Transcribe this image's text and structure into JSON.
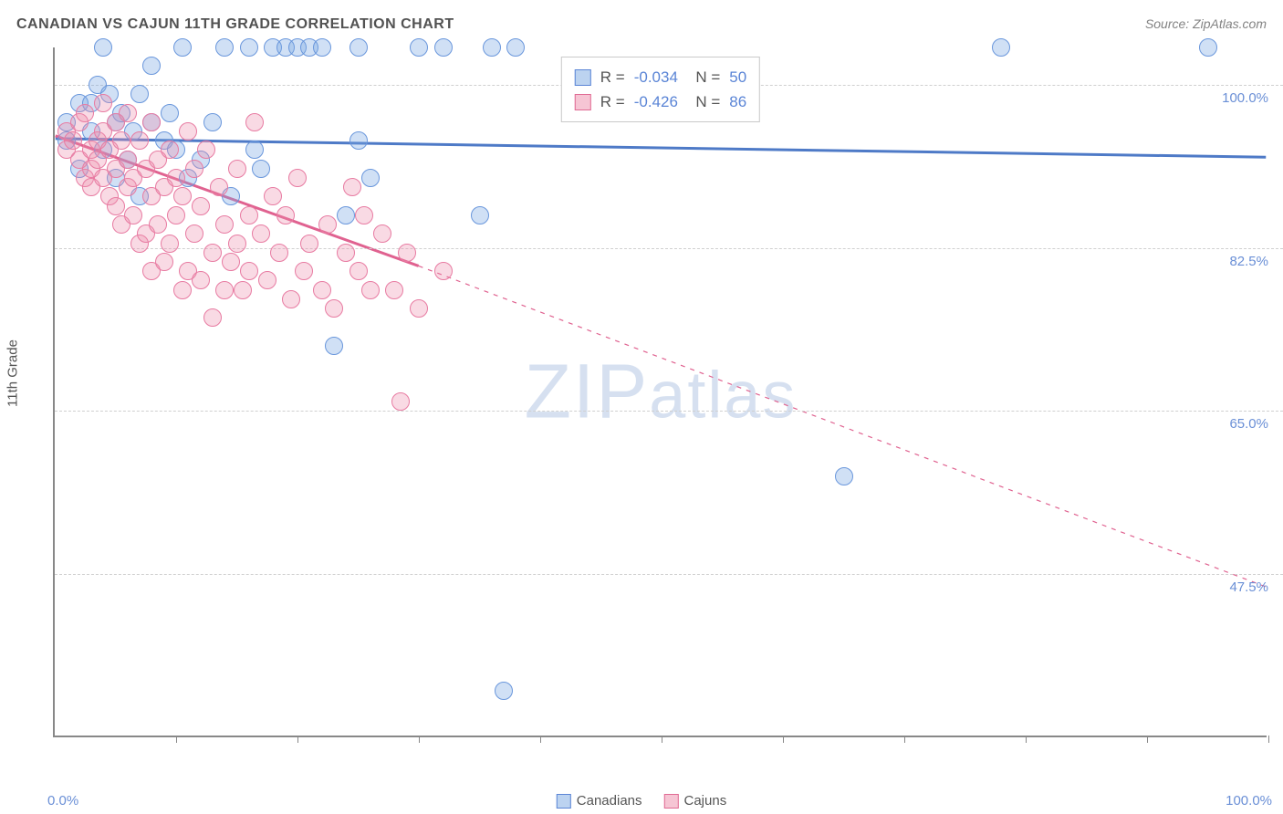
{
  "title": "CANADIAN VS CAJUN 11TH GRADE CORRELATION CHART",
  "source": "Source: ZipAtlas.com",
  "axis": {
    "y_title": "11th Grade",
    "x_min_label": "0.0%",
    "x_max_label": "100.0%",
    "x_min": 0,
    "x_max": 100,
    "y_min": 30,
    "y_max": 104,
    "y_gridlines": [
      47.5,
      65.0,
      82.5,
      100.0
    ],
    "y_labels": [
      "47.5%",
      "65.0%",
      "82.5%",
      "100.0%"
    ],
    "x_ticks": [
      10,
      20,
      30,
      40,
      50,
      60,
      70,
      80,
      90,
      100
    ],
    "grid_color": "#d0d0d0",
    "axis_color": "#888888"
  },
  "watermark": {
    "text_big": "ZIP",
    "text_small": "atlas"
  },
  "stats": [
    {
      "r": "-0.034",
      "n": "50",
      "fill": "#bcd3f0",
      "stroke": "#5b85d6"
    },
    {
      "r": "-0.426",
      "n": "86",
      "fill": "#f6c5d4",
      "stroke": "#e06a93"
    }
  ],
  "legend": [
    {
      "label": "Canadians",
      "fill": "#bcd3f0",
      "stroke": "#5b85d6"
    },
    {
      "label": "Cajuns",
      "fill": "#f6c5d4",
      "stroke": "#e06a93"
    }
  ],
  "series": [
    {
      "name": "Canadians",
      "fill": "rgba(120,165,225,0.35)",
      "stroke": "#6a97dc",
      "marker_radius": 10,
      "trend": {
        "solid_x0": 0,
        "solid_y0": 94.2,
        "solid_x1": 100,
        "solid_y1": 92.2,
        "dash_from_x": 100,
        "color": "#4e7ac7",
        "width": 3
      },
      "points": [
        [
          1,
          94
        ],
        [
          1,
          96
        ],
        [
          2,
          91
        ],
        [
          2,
          98
        ],
        [
          3,
          98
        ],
        [
          3,
          95
        ],
        [
          3.5,
          100
        ],
        [
          4,
          93
        ],
        [
          4,
          104
        ],
        [
          4.5,
          99
        ],
        [
          5,
          96
        ],
        [
          5,
          90
        ],
        [
          5.5,
          97
        ],
        [
          6,
          92
        ],
        [
          6.5,
          95
        ],
        [
          7,
          99
        ],
        [
          7,
          88
        ],
        [
          8,
          96
        ],
        [
          8,
          102
        ],
        [
          9,
          94
        ],
        [
          9.5,
          97
        ],
        [
          10,
          93
        ],
        [
          10.5,
          104
        ],
        [
          11,
          90
        ],
        [
          12,
          92
        ],
        [
          13,
          96
        ],
        [
          14,
          104
        ],
        [
          14.5,
          88
        ],
        [
          16,
          104
        ],
        [
          16.5,
          93
        ],
        [
          17,
          91
        ],
        [
          18,
          104
        ],
        [
          19,
          104
        ],
        [
          20,
          104
        ],
        [
          21,
          104
        ],
        [
          22,
          104
        ],
        [
          23,
          72
        ],
        [
          24,
          86
        ],
        [
          25,
          104
        ],
        [
          25,
          94
        ],
        [
          26,
          90
        ],
        [
          30,
          104
        ],
        [
          32,
          104
        ],
        [
          35,
          86
        ],
        [
          36,
          104
        ],
        [
          37,
          35
        ],
        [
          38,
          104
        ],
        [
          65,
          58
        ],
        [
          78,
          104
        ],
        [
          95,
          104
        ]
      ]
    },
    {
      "name": "Cajuns",
      "fill": "rgba(235,140,170,0.32)",
      "stroke": "#e87ba2",
      "marker_radius": 10,
      "trend": {
        "solid_x0": 0,
        "solid_y0": 94.5,
        "solid_x1": 30,
        "solid_y1": 80.5,
        "dash_from_x": 30,
        "dash_to_x": 100,
        "dash_to_y": 46.0,
        "color": "#e06290",
        "width": 3
      },
      "points": [
        [
          1,
          95
        ],
        [
          1,
          93
        ],
        [
          1.5,
          94
        ],
        [
          2,
          96
        ],
        [
          2,
          92
        ],
        [
          2.5,
          97
        ],
        [
          2.5,
          90
        ],
        [
          3,
          93
        ],
        [
          3,
          91
        ],
        [
          3,
          89
        ],
        [
          3.5,
          94
        ],
        [
          3.5,
          92
        ],
        [
          4,
          98
        ],
        [
          4,
          95
        ],
        [
          4,
          90
        ],
        [
          4.5,
          93
        ],
        [
          4.5,
          88
        ],
        [
          5,
          96
        ],
        [
          5,
          91
        ],
        [
          5,
          87
        ],
        [
          5.5,
          94
        ],
        [
          5.5,
          85
        ],
        [
          6,
          97
        ],
        [
          6,
          92
        ],
        [
          6,
          89
        ],
        [
          6.5,
          86
        ],
        [
          6.5,
          90
        ],
        [
          7,
          94
        ],
        [
          7,
          83
        ],
        [
          7.5,
          91
        ],
        [
          7.5,
          84
        ],
        [
          8,
          96
        ],
        [
          8,
          88
        ],
        [
          8,
          80
        ],
        [
          8.5,
          92
        ],
        [
          8.5,
          85
        ],
        [
          9,
          89
        ],
        [
          9,
          81
        ],
        [
          9.5,
          93
        ],
        [
          9.5,
          83
        ],
        [
          10,
          90
        ],
        [
          10,
          86
        ],
        [
          10.5,
          78
        ],
        [
          10.5,
          88
        ],
        [
          11,
          95
        ],
        [
          11,
          80
        ],
        [
          11.5,
          91
        ],
        [
          11.5,
          84
        ],
        [
          12,
          87
        ],
        [
          12,
          79
        ],
        [
          12.5,
          93
        ],
        [
          13,
          82
        ],
        [
          13,
          75
        ],
        [
          13.5,
          89
        ],
        [
          14,
          85
        ],
        [
          14,
          78
        ],
        [
          14.5,
          81
        ],
        [
          15,
          91
        ],
        [
          15,
          83
        ],
        [
          15.5,
          78
        ],
        [
          16,
          86
        ],
        [
          16,
          80
        ],
        [
          16.5,
          96
        ],
        [
          17,
          84
        ],
        [
          17.5,
          79
        ],
        [
          18,
          88
        ],
        [
          18.5,
          82
        ],
        [
          19,
          86
        ],
        [
          19.5,
          77
        ],
        [
          20,
          90
        ],
        [
          20.5,
          80
        ],
        [
          21,
          83
        ],
        [
          22,
          78
        ],
        [
          22.5,
          85
        ],
        [
          23,
          76
        ],
        [
          24,
          82
        ],
        [
          24.5,
          89
        ],
        [
          25,
          80
        ],
        [
          25.5,
          86
        ],
        [
          26,
          78
        ],
        [
          27,
          84
        ],
        [
          28,
          78
        ],
        [
          28.5,
          66
        ],
        [
          29,
          82
        ],
        [
          30,
          76
        ],
        [
          32,
          80
        ]
      ]
    }
  ]
}
